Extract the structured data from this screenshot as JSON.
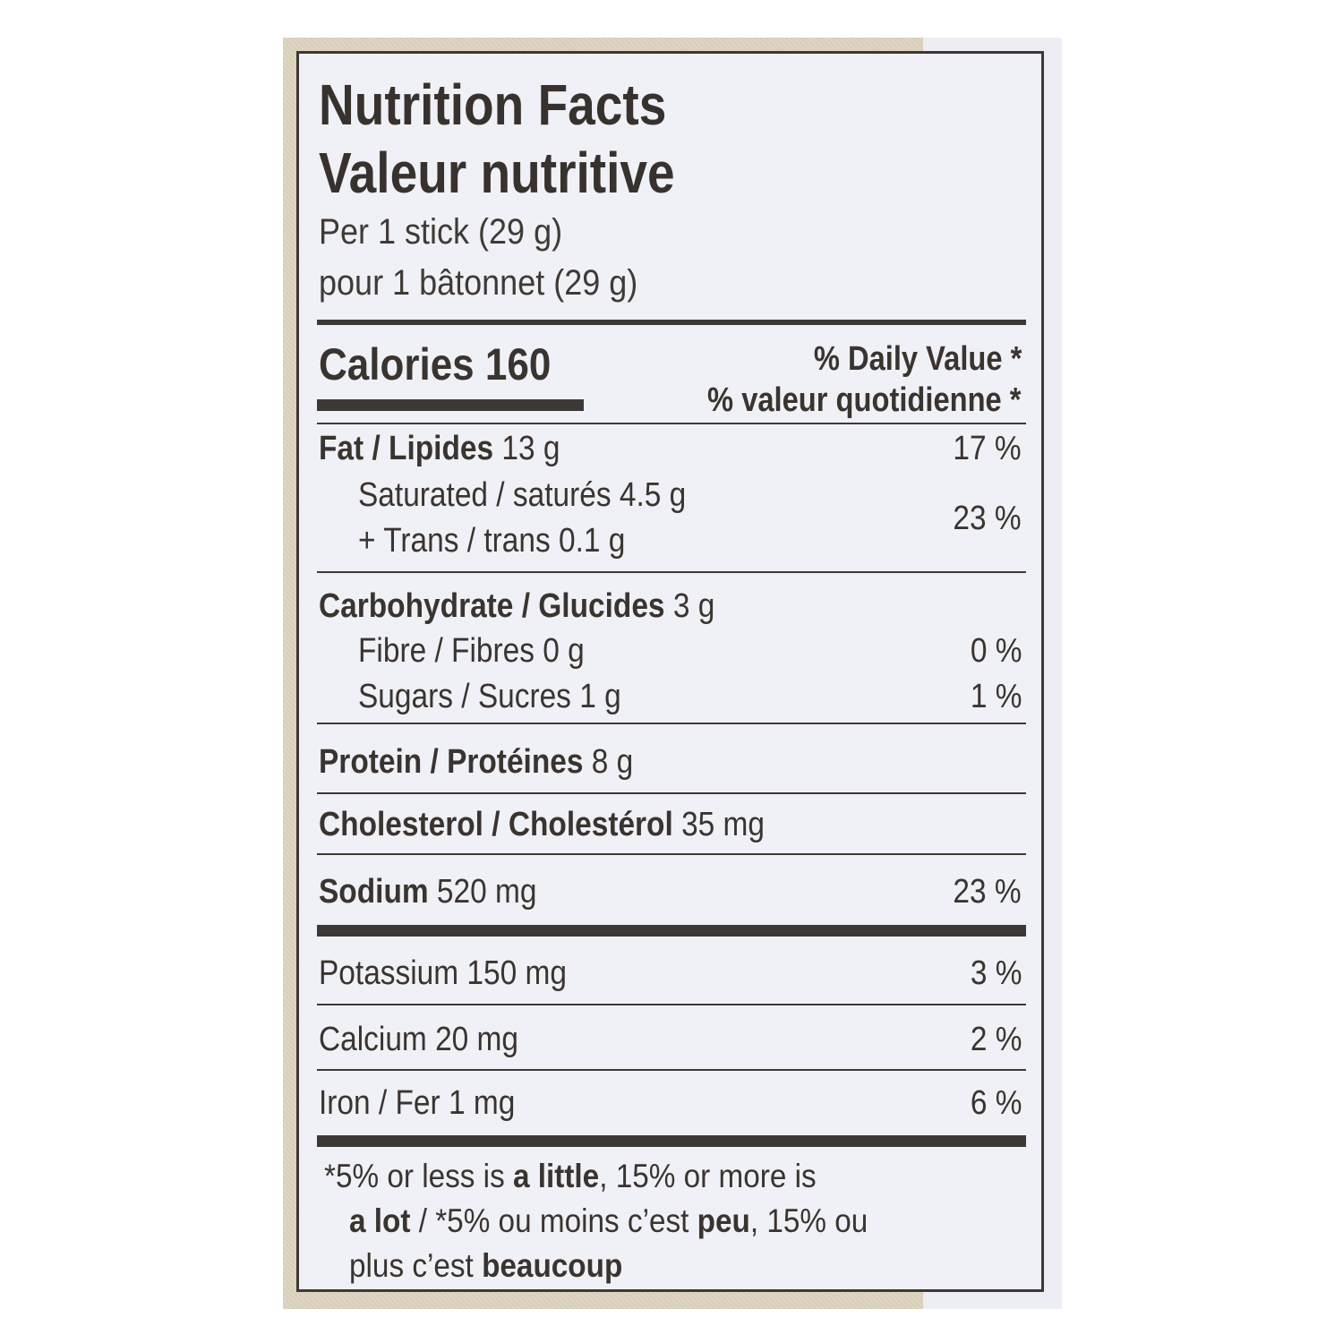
{
  "title_en": "Nutrition Facts",
  "title_fr": "Valeur nutritive",
  "serving_en": "Per 1 stick (29 g)",
  "serving_fr": "pour 1 bâtonnet (29 g)",
  "calories": {
    "label": "Calories",
    "value": "160"
  },
  "daily_value_en": "% Daily Value",
  "daily_value_fr": "% valeur quotidienne",
  "asterisk": "*",
  "fat": {
    "label": "Fat / Lipides",
    "amount": "13 g",
    "dv": "17 %"
  },
  "saturated": {
    "label": "Saturated / saturés",
    "amount": "4.5 g"
  },
  "trans": {
    "label": "+ Trans / trans",
    "amount": "0.1 g"
  },
  "sat_trans_dv": "23 %",
  "carbohydrate": {
    "label": "Carbohydrate / Glucides",
    "amount": "3 g"
  },
  "fibre": {
    "label": "Fibre / Fibres",
    "amount": "0 g",
    "dv": "0 %"
  },
  "sugars": {
    "label": "Sugars / Sucres",
    "amount": "1 g",
    "dv": "1 %"
  },
  "protein": {
    "label": "Protein / Protéines",
    "amount": "8 g"
  },
  "cholesterol": {
    "label": "Cholesterol / Cholestérol",
    "amount": "35 mg"
  },
  "sodium": {
    "label": "Sodium",
    "amount": "520 mg",
    "dv": "23 %"
  },
  "potassium": {
    "label": "Potassium",
    "amount": "150 mg",
    "dv": "3 %"
  },
  "calcium": {
    "label": "Calcium",
    "amount": "20 mg",
    "dv": "2 %"
  },
  "iron": {
    "label": "Iron / Fer",
    "amount": "1 mg",
    "dv": "6 %"
  },
  "footnote": {
    "l1_a": "*5% or less is ",
    "l1_b": "a little",
    "l1_c": ", 15% or more is",
    "l2_a": "a lot",
    "l2_b": " / *5% ou moins c’est ",
    "l2_c": "peu",
    "l2_d": ", 15% ou",
    "l3_a": "plus c’est ",
    "l3_b": "beaucoup"
  }
}
